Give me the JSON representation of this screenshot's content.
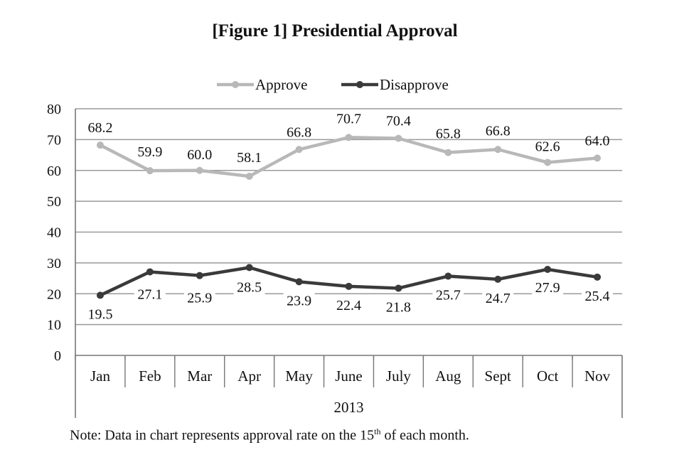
{
  "title": "[Figure 1] Presidential Approval",
  "note": {
    "prefix": "Note: Data in chart represents approval rate on the 15",
    "superscript": "th",
    "suffix": " of each month."
  },
  "chart_data": {
    "type": "line",
    "title": "[Figure 1] Presidential Approval",
    "categories": [
      "Jan",
      "Feb",
      "Mar",
      "Apr",
      "May",
      "June",
      "July",
      "Aug",
      "Sept",
      "Oct",
      "Nov"
    ],
    "category_group_label": "2013",
    "series": [
      {
        "name": "Approve",
        "color": "#b8b8b8",
        "values": [
          68.2,
          59.9,
          60.0,
          58.1,
          66.8,
          70.7,
          70.4,
          65.8,
          66.8,
          62.6,
          64.0
        ],
        "labels": [
          "68.2",
          "59.9",
          "60.0",
          "58.1",
          "66.8",
          "70.7",
          "70.4",
          "65.8",
          "66.8",
          "62.6",
          "64.0"
        ]
      },
      {
        "name": "Disapprove",
        "color": "#3a3a3a",
        "values": [
          19.5,
          27.1,
          25.9,
          28.5,
          23.9,
          22.4,
          21.8,
          25.7,
          24.7,
          27.9,
          25.4
        ],
        "labels": [
          "19.5",
          "27.1",
          "25.9",
          "28.5",
          "23.9",
          "22.4",
          "21.8",
          "25.7",
          "24.7",
          "27.9",
          "25.4"
        ]
      }
    ],
    "yticks": [
      0,
      10,
      20,
      30,
      40,
      50,
      60,
      70,
      80
    ],
    "ylim": [
      0,
      80
    ],
    "grid": true,
    "legend_position": "top-center"
  }
}
